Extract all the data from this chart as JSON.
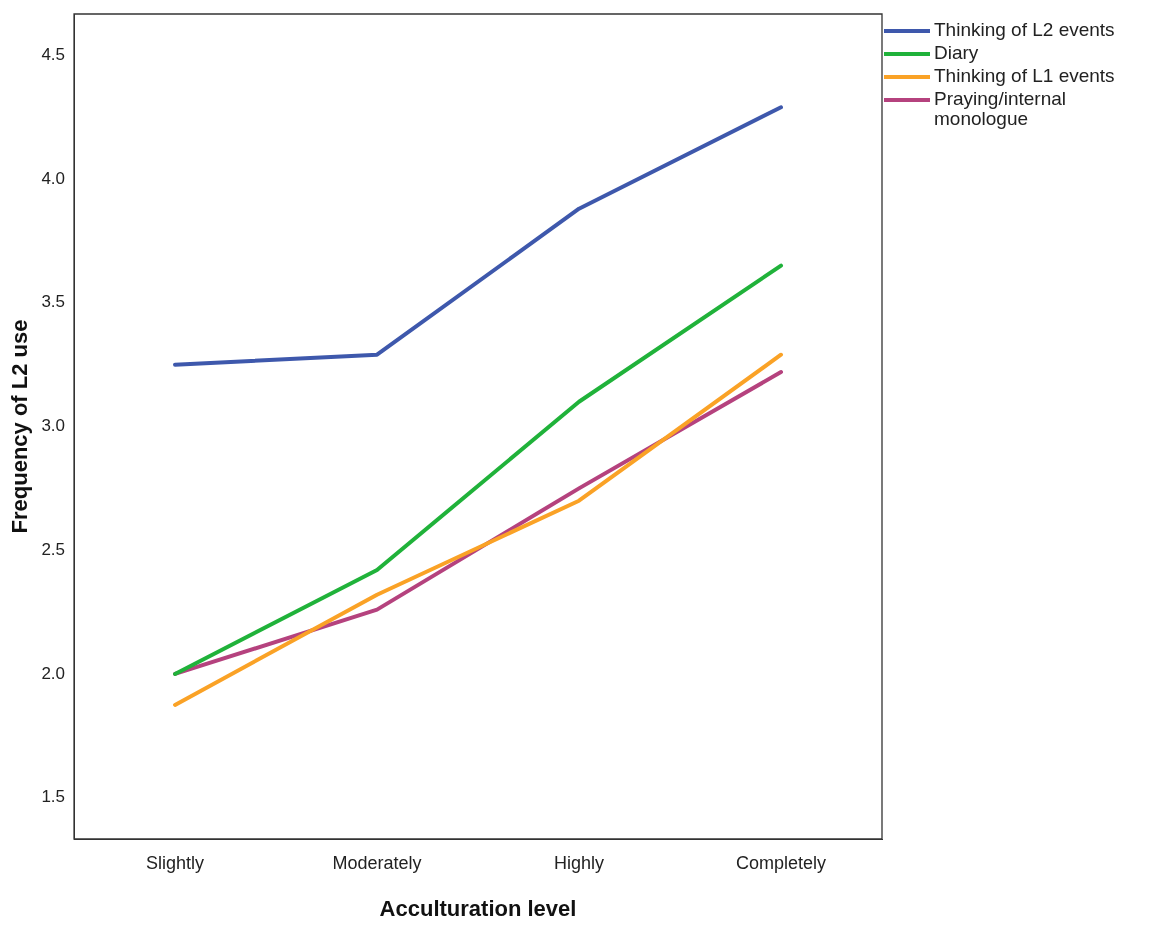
{
  "chart_data": {
    "type": "line",
    "xlabel": "Acculturation level",
    "ylabel": "Frequency of L2 use",
    "categories": [
      "Slightly",
      "Moderately",
      "Highly",
      "Completely"
    ],
    "series": [
      {
        "name": "Thinking of L2 events",
        "color": "#3e58ac",
        "values": [
          3.25,
          3.29,
          3.88,
          4.29
        ]
      },
      {
        "name": "Diary",
        "color": "#20b23a",
        "values": [
          2.0,
          2.42,
          3.1,
          3.65
        ]
      },
      {
        "name": "Thinking of L1 events",
        "color": "#faa226",
        "values": [
          1.875,
          2.32,
          2.7,
          3.29
        ]
      },
      {
        "name": "Praying/internal monologue",
        "color": "#b5427e",
        "values": [
          2.0,
          2.26,
          2.75,
          3.22
        ]
      }
    ],
    "ylim": [
      1.333,
      4.667
    ],
    "yticks": [
      1.5,
      {
        "value": 2,
        "label": "2.0"
      },
      2.5,
      {
        "value": 3,
        "label": "3.0"
      },
      3.5,
      {
        "value": 4,
        "label": "4.0"
      },
      4.5
    ],
    "grid": false,
    "legend": "top right",
    "marker": "none",
    "line_style": "solid"
  }
}
